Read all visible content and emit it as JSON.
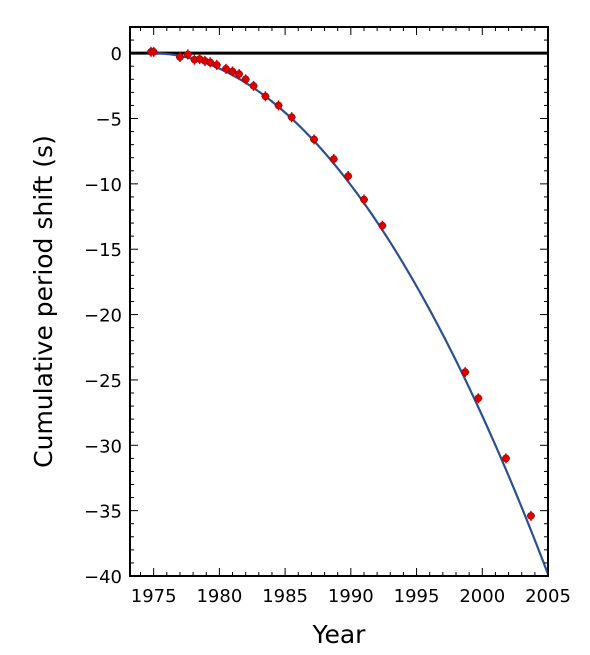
{
  "chart_data": {
    "type": "scatter",
    "title": "",
    "xlabel": "Year",
    "ylabel": "Cumulative period shift (s)",
    "xlim": [
      1973.2,
      2005
    ],
    "ylim": [
      -40,
      2
    ],
    "xticks": [
      1975,
      1980,
      1985,
      1990,
      1995,
      2000,
      2005
    ],
    "xtick_labels": [
      "1975",
      "1980",
      "1985",
      "1990",
      "1995",
      "2000",
      "2005"
    ],
    "yticks": [
      0,
      -5,
      -10,
      -15,
      -20,
      -25,
      -30,
      -35,
      -40
    ],
    "ytick_labels": [
      "0",
      "−5",
      "−10",
      "−15",
      "−20",
      "−25",
      "−30",
      "−35",
      "−40"
    ],
    "grid": false,
    "reference_line_y": 0,
    "colors": {
      "fit_curve": "#2b4f8f",
      "points": "#dd0000",
      "reference_line": "#000000"
    },
    "fit_curve": {
      "type": "quadratic",
      "t0": 1974.8,
      "coefficient": -0.0437
    },
    "series": [
      {
        "x": [
          1974.8,
          1975.0,
          1977.0,
          1977.6,
          1978.1,
          1978.5,
          1978.9,
          1979.3,
          1979.8,
          1980.5,
          1981.0,
          1981.5,
          1982.0,
          1982.6,
          1983.5,
          1984.5,
          1985.5,
          1987.2,
          1988.7,
          1989.8,
          1991.0,
          1992.4,
          1998.7,
          1999.7,
          2001.8,
          2003.7
        ],
        "y": [
          0.1,
          0.1,
          -0.3,
          -0.1,
          -0.5,
          -0.45,
          -0.6,
          -0.7,
          -0.9,
          -1.2,
          -1.4,
          -1.6,
          -2.0,
          -2.5,
          -3.3,
          -4.0,
          -4.9,
          -6.6,
          -8.1,
          -9.4,
          -11.2,
          -13.2,
          -24.4,
          -26.4,
          -31.0,
          -35.4
        ]
      }
    ]
  }
}
